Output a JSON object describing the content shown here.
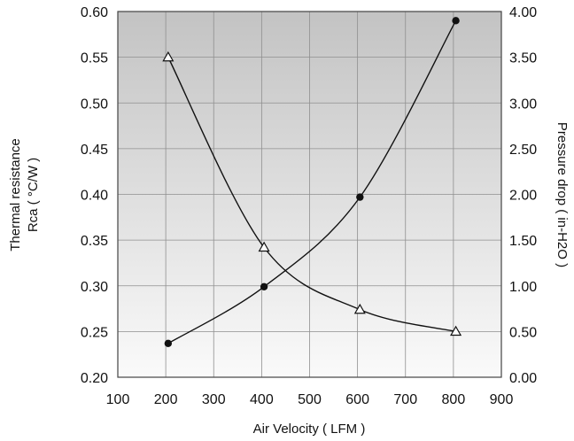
{
  "chart_data": {
    "type": "line",
    "xlabel": "Air Velocity ( LFM )",
    "ylabel_left_line1": "Thermal resistance",
    "ylabel_left_line2": "Rca ( °C/W )",
    "ylabel_right": "Pressure drop ( in-H2O )",
    "xlim": [
      100,
      900
    ],
    "ylim_left": [
      0.2,
      0.6
    ],
    "ylim_right": [
      0.0,
      4.0
    ],
    "x_ticks": [
      "100",
      "200",
      "300",
      "400",
      "500",
      "600",
      "700",
      "800",
      "900"
    ],
    "y_left_ticks": [
      "0.60",
      "0.55",
      "0.50",
      "0.45",
      "0.40",
      "0.35",
      "0.30",
      "0.25",
      "0.20"
    ],
    "y_right_ticks": [
      "4.00",
      "3.50",
      "3.00",
      "2.50",
      "2.00",
      "1.50",
      "1.00",
      "0.50",
      "0.00"
    ],
    "grid": true,
    "series": [
      {
        "axis": "right",
        "marker": "circle",
        "x": [
          205,
          405,
          605,
          805
        ],
        "y": [
          0.37,
          0.99,
          1.97,
          3.9
        ]
      },
      {
        "axis": "left",
        "marker": "triangle",
        "x": [
          205,
          405,
          605,
          805
        ],
        "y": [
          0.55,
          0.342,
          0.274,
          0.25
        ]
      }
    ]
  }
}
